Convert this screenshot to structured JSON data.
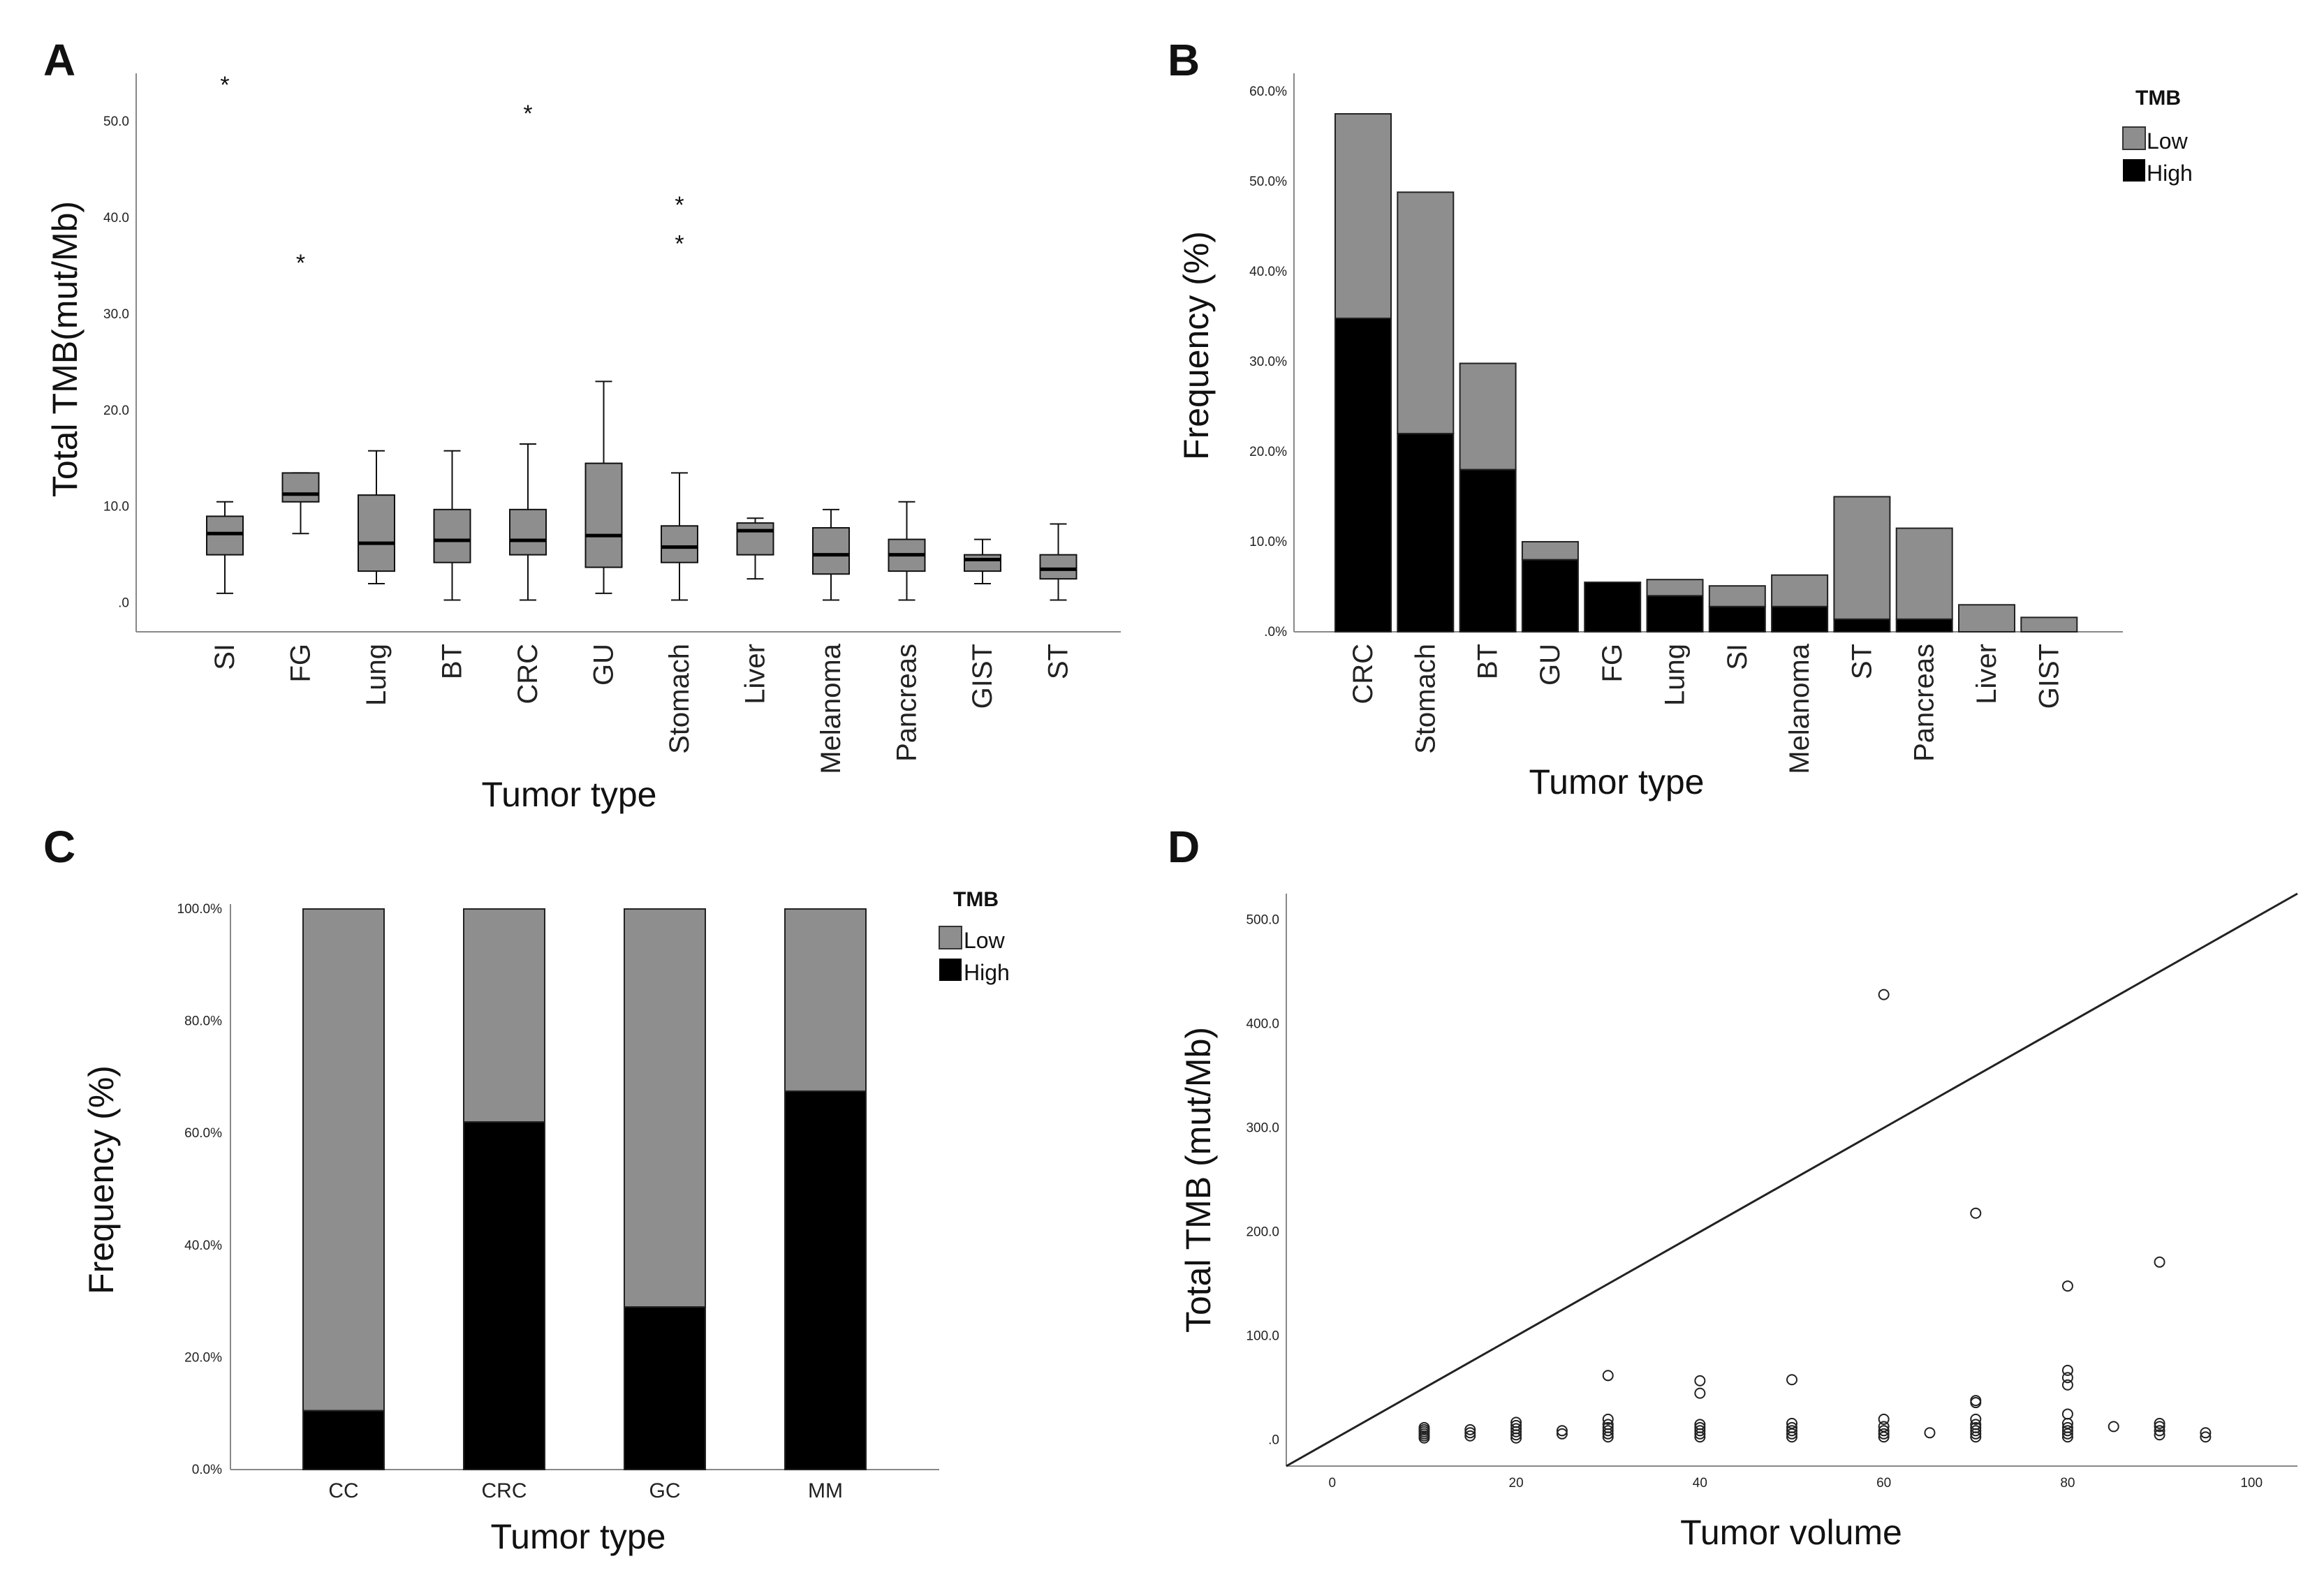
{
  "colors": {
    "low": "#8e8e8e",
    "high": "#000000",
    "axis": "#888888",
    "box": "#8e8e8e"
  },
  "chart_data": [
    {
      "panel": "A",
      "type": "box",
      "title": "",
      "xlabel": "Tumor type",
      "ylabel": "Total TMB(mut/Mb)",
      "ylim": [
        -3,
        55
      ],
      "yticks": [
        ".0",
        "10.0",
        "20.0",
        "30.0",
        "40.0",
        "50.0"
      ],
      "categories": [
        "SI",
        "FG",
        "Lung",
        "BT",
        "CRC",
        "GU",
        "Stomach",
        "Liver",
        "Melanoma",
        "Pancreas",
        "GIST",
        "ST"
      ],
      "boxes": [
        {
          "min": 1.0,
          "q1": 5.0,
          "median": 7.2,
          "q3": 9.0,
          "max": 10.5,
          "outliers": [
            54.0
          ]
        },
        {
          "min": 7.2,
          "q1": 10.5,
          "median": 11.3,
          "q3": 13.5,
          "max": 13.5,
          "outliers": [
            35.5
          ]
        },
        {
          "min": 2.0,
          "q1": 3.3,
          "median": 6.2,
          "q3": 11.2,
          "max": 15.8,
          "outliers": []
        },
        {
          "min": 0.3,
          "q1": 4.2,
          "median": 6.5,
          "q3": 9.7,
          "max": 15.8,
          "outliers": []
        },
        {
          "min": 0.3,
          "q1": 5.0,
          "median": 6.5,
          "q3": 9.7,
          "max": 16.5,
          "outliers": [
            51.0
          ]
        },
        {
          "min": 1.0,
          "q1": 3.7,
          "median": 7.0,
          "q3": 14.5,
          "max": 23.0,
          "outliers": []
        },
        {
          "min": 0.3,
          "q1": 4.2,
          "median": 5.8,
          "q3": 8.0,
          "max": 13.5,
          "outliers": [
            41.5,
            37.5
          ]
        },
        {
          "min": 2.5,
          "q1": 5.0,
          "median": 7.5,
          "q3": 8.3,
          "max": 8.8,
          "outliers": []
        },
        {
          "min": 0.3,
          "q1": 3.0,
          "median": 5.0,
          "q3": 7.8,
          "max": 9.7,
          "outliers": []
        },
        {
          "min": 0.3,
          "q1": 3.3,
          "median": 5.0,
          "q3": 6.6,
          "max": 10.5,
          "outliers": []
        },
        {
          "min": 2.0,
          "q1": 3.3,
          "median": 4.5,
          "q3": 5.0,
          "max": 6.6,
          "outliers": []
        },
        {
          "min": 0.3,
          "q1": 2.5,
          "median": 3.5,
          "q3": 5.0,
          "max": 8.2,
          "outliers": []
        }
      ]
    },
    {
      "panel": "B",
      "type": "bar",
      "stacked": true,
      "xlabel": "Tumor type",
      "ylabel": "Frequency (%)",
      "ylim": [
        0,
        62
      ],
      "yticks": [
        ".0%",
        "10.0%",
        "20.0%",
        "30.0%",
        "40.0%",
        "50.0%",
        "60.0%"
      ],
      "legend": {
        "title": "TMB",
        "position": "top-right"
      },
      "categories": [
        "CRC",
        "Stomach",
        "BT",
        "GU",
        "FG",
        "Lung",
        "SI",
        "Melanoma",
        "ST",
        "Pancreas",
        "Liver",
        "GIST"
      ],
      "series": [
        {
          "name": "High",
          "values": [
            34.8,
            22.0,
            18.0,
            8.0,
            5.5,
            4.0,
            2.8,
            2.8,
            1.4,
            1.4,
            0,
            0
          ]
        },
        {
          "name": "Low",
          "values": [
            22.7,
            26.8,
            11.8,
            2.0,
            0,
            1.8,
            2.3,
            3.5,
            13.6,
            10.1,
            3.0,
            1.6
          ]
        }
      ]
    },
    {
      "panel": "C",
      "type": "bar",
      "stacked": true,
      "xlabel": "Tumor type",
      "ylabel": "Frequency (%)",
      "ylim": [
        0,
        100
      ],
      "yticks": [
        "0.0%",
        "20.0%",
        "40.0%",
        "60.0%",
        "80.0%",
        "100.0%"
      ],
      "legend": {
        "title": "TMB",
        "position": "top-right"
      },
      "categories": [
        "CC",
        "CRC",
        "GC",
        "MM"
      ],
      "series": [
        {
          "name": "High",
          "values": [
            10.5,
            62.0,
            29.0,
            67.5
          ]
        },
        {
          "name": "Low",
          "values": [
            89.5,
            38.0,
            71.0,
            32.5
          ]
        }
      ]
    },
    {
      "panel": "D",
      "type": "scatter",
      "xlabel": "Tumor volume",
      "ylabel": "Total TMB (mut/Mb)",
      "xlim": [
        -5,
        105
      ],
      "ylim": [
        -25,
        525
      ],
      "xticks": [
        "0",
        "20",
        "40",
        "60",
        "80",
        "100"
      ],
      "yticks": [
        ".0",
        "100.0",
        "200.0",
        "300.0",
        "400.0",
        "500.0"
      ],
      "reference_line": {
        "x": [
          -5,
          105
        ],
        "y": [
          -25,
          525
        ]
      },
      "points": [
        [
          10,
          2
        ],
        [
          10,
          4
        ],
        [
          10,
          6
        ],
        [
          10,
          8
        ],
        [
          10,
          10
        ],
        [
          10,
          12
        ],
        [
          15,
          4
        ],
        [
          15,
          7
        ],
        [
          15,
          10
        ],
        [
          20,
          2
        ],
        [
          20,
          5
        ],
        [
          20,
          8
        ],
        [
          20,
          11
        ],
        [
          20,
          14
        ],
        [
          20,
          17
        ],
        [
          25,
          6
        ],
        [
          25,
          9
        ],
        [
          30,
          3
        ],
        [
          30,
          6
        ],
        [
          30,
          9
        ],
        [
          30,
          12
        ],
        [
          30,
          15
        ],
        [
          30,
          20
        ],
        [
          30,
          62
        ],
        [
          40,
          3
        ],
        [
          40,
          6
        ],
        [
          40,
          9
        ],
        [
          40,
          12
        ],
        [
          40,
          15
        ],
        [
          40,
          45
        ],
        [
          40,
          57
        ],
        [
          50,
          3
        ],
        [
          50,
          6
        ],
        [
          50,
          9
        ],
        [
          50,
          12
        ],
        [
          50,
          16
        ],
        [
          50,
          58
        ],
        [
          60,
          3
        ],
        [
          60,
          6
        ],
        [
          60,
          9
        ],
        [
          60,
          13
        ],
        [
          60,
          20
        ],
        [
          60,
          428
        ],
        [
          65,
          7
        ],
        [
          70,
          3
        ],
        [
          70,
          6
        ],
        [
          70,
          9
        ],
        [
          70,
          12
        ],
        [
          70,
          15
        ],
        [
          70,
          20
        ],
        [
          70,
          36
        ],
        [
          70,
          38
        ],
        [
          70,
          218
        ],
        [
          80,
          3
        ],
        [
          80,
          6
        ],
        [
          80,
          9
        ],
        [
          80,
          12
        ],
        [
          80,
          16
        ],
        [
          80,
          25
        ],
        [
          80,
          53
        ],
        [
          80,
          60
        ],
        [
          80,
          67
        ],
        [
          80,
          148
        ],
        [
          85,
          13
        ],
        [
          90,
          5
        ],
        [
          90,
          9
        ],
        [
          90,
          13
        ],
        [
          90,
          16
        ],
        [
          90,
          171
        ],
        [
          95,
          3
        ],
        [
          95,
          7
        ]
      ]
    }
  ]
}
